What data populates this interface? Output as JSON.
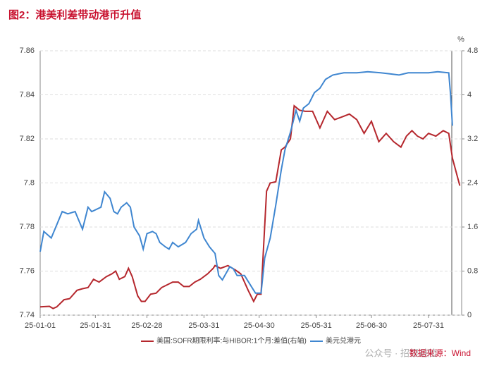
{
  "chart_data": {
    "type": "line",
    "title": "图2：港美利差带动港币升值",
    "y2_unit": "%",
    "source": "数据来源：Wind",
    "watermark": "公众号 · 招银避险",
    "xlim": [
      "25-01-01",
      "25-08-18"
    ],
    "xticks": [
      "25-01-01",
      "25-01-31",
      "25-02-28",
      "25-03-31",
      "25-04-30",
      "25-05-31",
      "25-06-30",
      "25-07-31"
    ],
    "ylim": [
      7.74,
      7.86
    ],
    "yticks": [
      7.74,
      7.76,
      7.78,
      7.8,
      7.82,
      7.84,
      7.86
    ],
    "y2lim": [
      0,
      4.8
    ],
    "y2ticks": [
      0,
      0.8,
      1.6,
      2.4,
      3.2,
      4,
      4.8
    ],
    "grid": true,
    "series": [
      {
        "name": "美国:SOFR期限利率:与HIBOR:1个月:差值(右轴)",
        "color": "#b5272d",
        "axis": "y2",
        "x": [
          "25-01-01",
          "25-01-06",
          "25-01-08",
          "25-01-10",
          "25-01-14",
          "25-01-17",
          "25-01-21",
          "25-01-24",
          "25-01-27",
          "25-01-30",
          "25-02-02",
          "25-02-06",
          "25-02-09",
          "25-02-11",
          "25-02-13",
          "25-02-16",
          "25-02-18",
          "25-02-20",
          "25-02-23",
          "25-02-25",
          "25-02-27",
          "25-03-02",
          "25-03-05",
          "25-03-08",
          "25-03-11",
          "25-03-14",
          "25-03-17",
          "25-03-20",
          "25-03-23",
          "25-03-26",
          "25-03-29",
          "25-04-02",
          "25-04-05",
          "25-04-06",
          "25-04-09",
          "25-04-13",
          "25-04-17",
          "25-04-20",
          "25-04-24",
          "25-04-27",
          "25-04-29",
          "25-05-01",
          "25-05-04",
          "25-05-06",
          "25-05-09",
          "25-05-12",
          "25-05-14",
          "25-05-17",
          "25-05-19",
          "25-05-22",
          "25-05-25",
          "25-05-29",
          "25-06-02",
          "25-06-06",
          "25-06-10",
          "25-06-14",
          "25-06-18",
          "25-06-22",
          "25-06-26",
          "25-06-30",
          "25-07-04",
          "25-07-08",
          "25-07-12",
          "25-07-16",
          "25-07-19",
          "25-07-22",
          "25-07-25",
          "25-07-28",
          "25-07-31",
          "25-08-04",
          "25-08-08",
          "25-08-11",
          "25-08-13",
          "25-08-17"
        ],
        "values": [
          0.15,
          0.16,
          0.12,
          0.15,
          0.28,
          0.3,
          0.45,
          0.48,
          0.5,
          0.65,
          0.6,
          0.7,
          0.75,
          0.8,
          0.65,
          0.7,
          0.85,
          0.7,
          0.35,
          0.25,
          0.25,
          0.38,
          0.4,
          0.5,
          0.55,
          0.6,
          0.6,
          0.52,
          0.52,
          0.6,
          0.65,
          0.75,
          0.85,
          0.9,
          0.85,
          0.9,
          0.82,
          0.75,
          0.45,
          0.25,
          0.38,
          0.38,
          2.25,
          2.4,
          2.42,
          3.0,
          3.05,
          3.2,
          3.8,
          3.72,
          3.7,
          3.7,
          3.4,
          3.7,
          3.55,
          3.6,
          3.65,
          3.55,
          3.3,
          3.52,
          3.15,
          3.3,
          3.15,
          3.05,
          3.25,
          3.35,
          3.25,
          3.2,
          3.3,
          3.25,
          3.35,
          3.3,
          2.85,
          2.35
        ]
      },
      {
        "name": "美元兑港元",
        "color": "#3f86d0",
        "axis": "y",
        "x": [
          "25-01-01",
          "25-01-03",
          "25-01-07",
          "25-01-10",
          "25-01-13",
          "25-01-16",
          "25-01-20",
          "25-01-22",
          "25-01-24",
          "25-01-27",
          "25-01-29",
          "25-02-03",
          "25-02-05",
          "25-02-08",
          "25-02-10",
          "25-02-12",
          "25-02-14",
          "25-02-17",
          "25-02-19",
          "25-02-21",
          "25-02-24",
          "25-02-26",
          "25-02-28",
          "25-03-03",
          "25-03-05",
          "25-03-07",
          "25-03-10",
          "25-03-12",
          "25-03-14",
          "25-03-17",
          "25-03-19",
          "25-03-21",
          "25-03-24",
          "25-03-27",
          "25-03-28",
          "25-03-31",
          "25-04-03",
          "25-04-06",
          "25-04-08",
          "25-04-10",
          "25-04-14",
          "25-04-16",
          "25-04-18",
          "25-04-22",
          "25-04-25",
          "25-04-28",
          "25-05-01",
          "25-05-03",
          "25-05-06",
          "25-05-09",
          "25-05-12",
          "25-05-14",
          "25-05-17",
          "25-05-20",
          "25-05-22",
          "25-05-24",
          "25-05-27",
          "25-05-30",
          "25-06-02",
          "25-06-05",
          "25-06-09",
          "25-06-15",
          "25-06-22",
          "25-06-28",
          "25-07-05",
          "25-07-10",
          "25-07-15",
          "25-07-20",
          "25-07-25",
          "25-07-31",
          "25-08-05",
          "25-08-11",
          "25-08-12",
          "25-08-13"
        ],
        "values": [
          7.7688,
          7.778,
          7.775,
          7.781,
          7.787,
          7.786,
          7.787,
          7.783,
          7.779,
          7.789,
          7.787,
          7.789,
          7.796,
          7.793,
          7.787,
          7.786,
          7.789,
          7.791,
          7.789,
          7.78,
          7.776,
          7.77,
          7.777,
          7.778,
          7.777,
          7.773,
          7.771,
          7.77,
          7.773,
          7.771,
          7.772,
          7.773,
          7.777,
          7.779,
          7.783,
          7.775,
          7.771,
          7.768,
          7.758,
          7.756,
          7.762,
          7.761,
          7.758,
          7.758,
          7.754,
          7.75,
          7.75,
          7.766,
          7.775,
          7.79,
          7.806,
          7.815,
          7.823,
          7.833,
          7.828,
          7.834,
          7.836,
          7.841,
          7.843,
          7.847,
          7.849,
          7.85,
          7.85,
          7.8505,
          7.85,
          7.8495,
          7.849,
          7.85,
          7.85,
          7.85,
          7.8505,
          7.85,
          7.84,
          7.826
        ]
      }
    ]
  }
}
